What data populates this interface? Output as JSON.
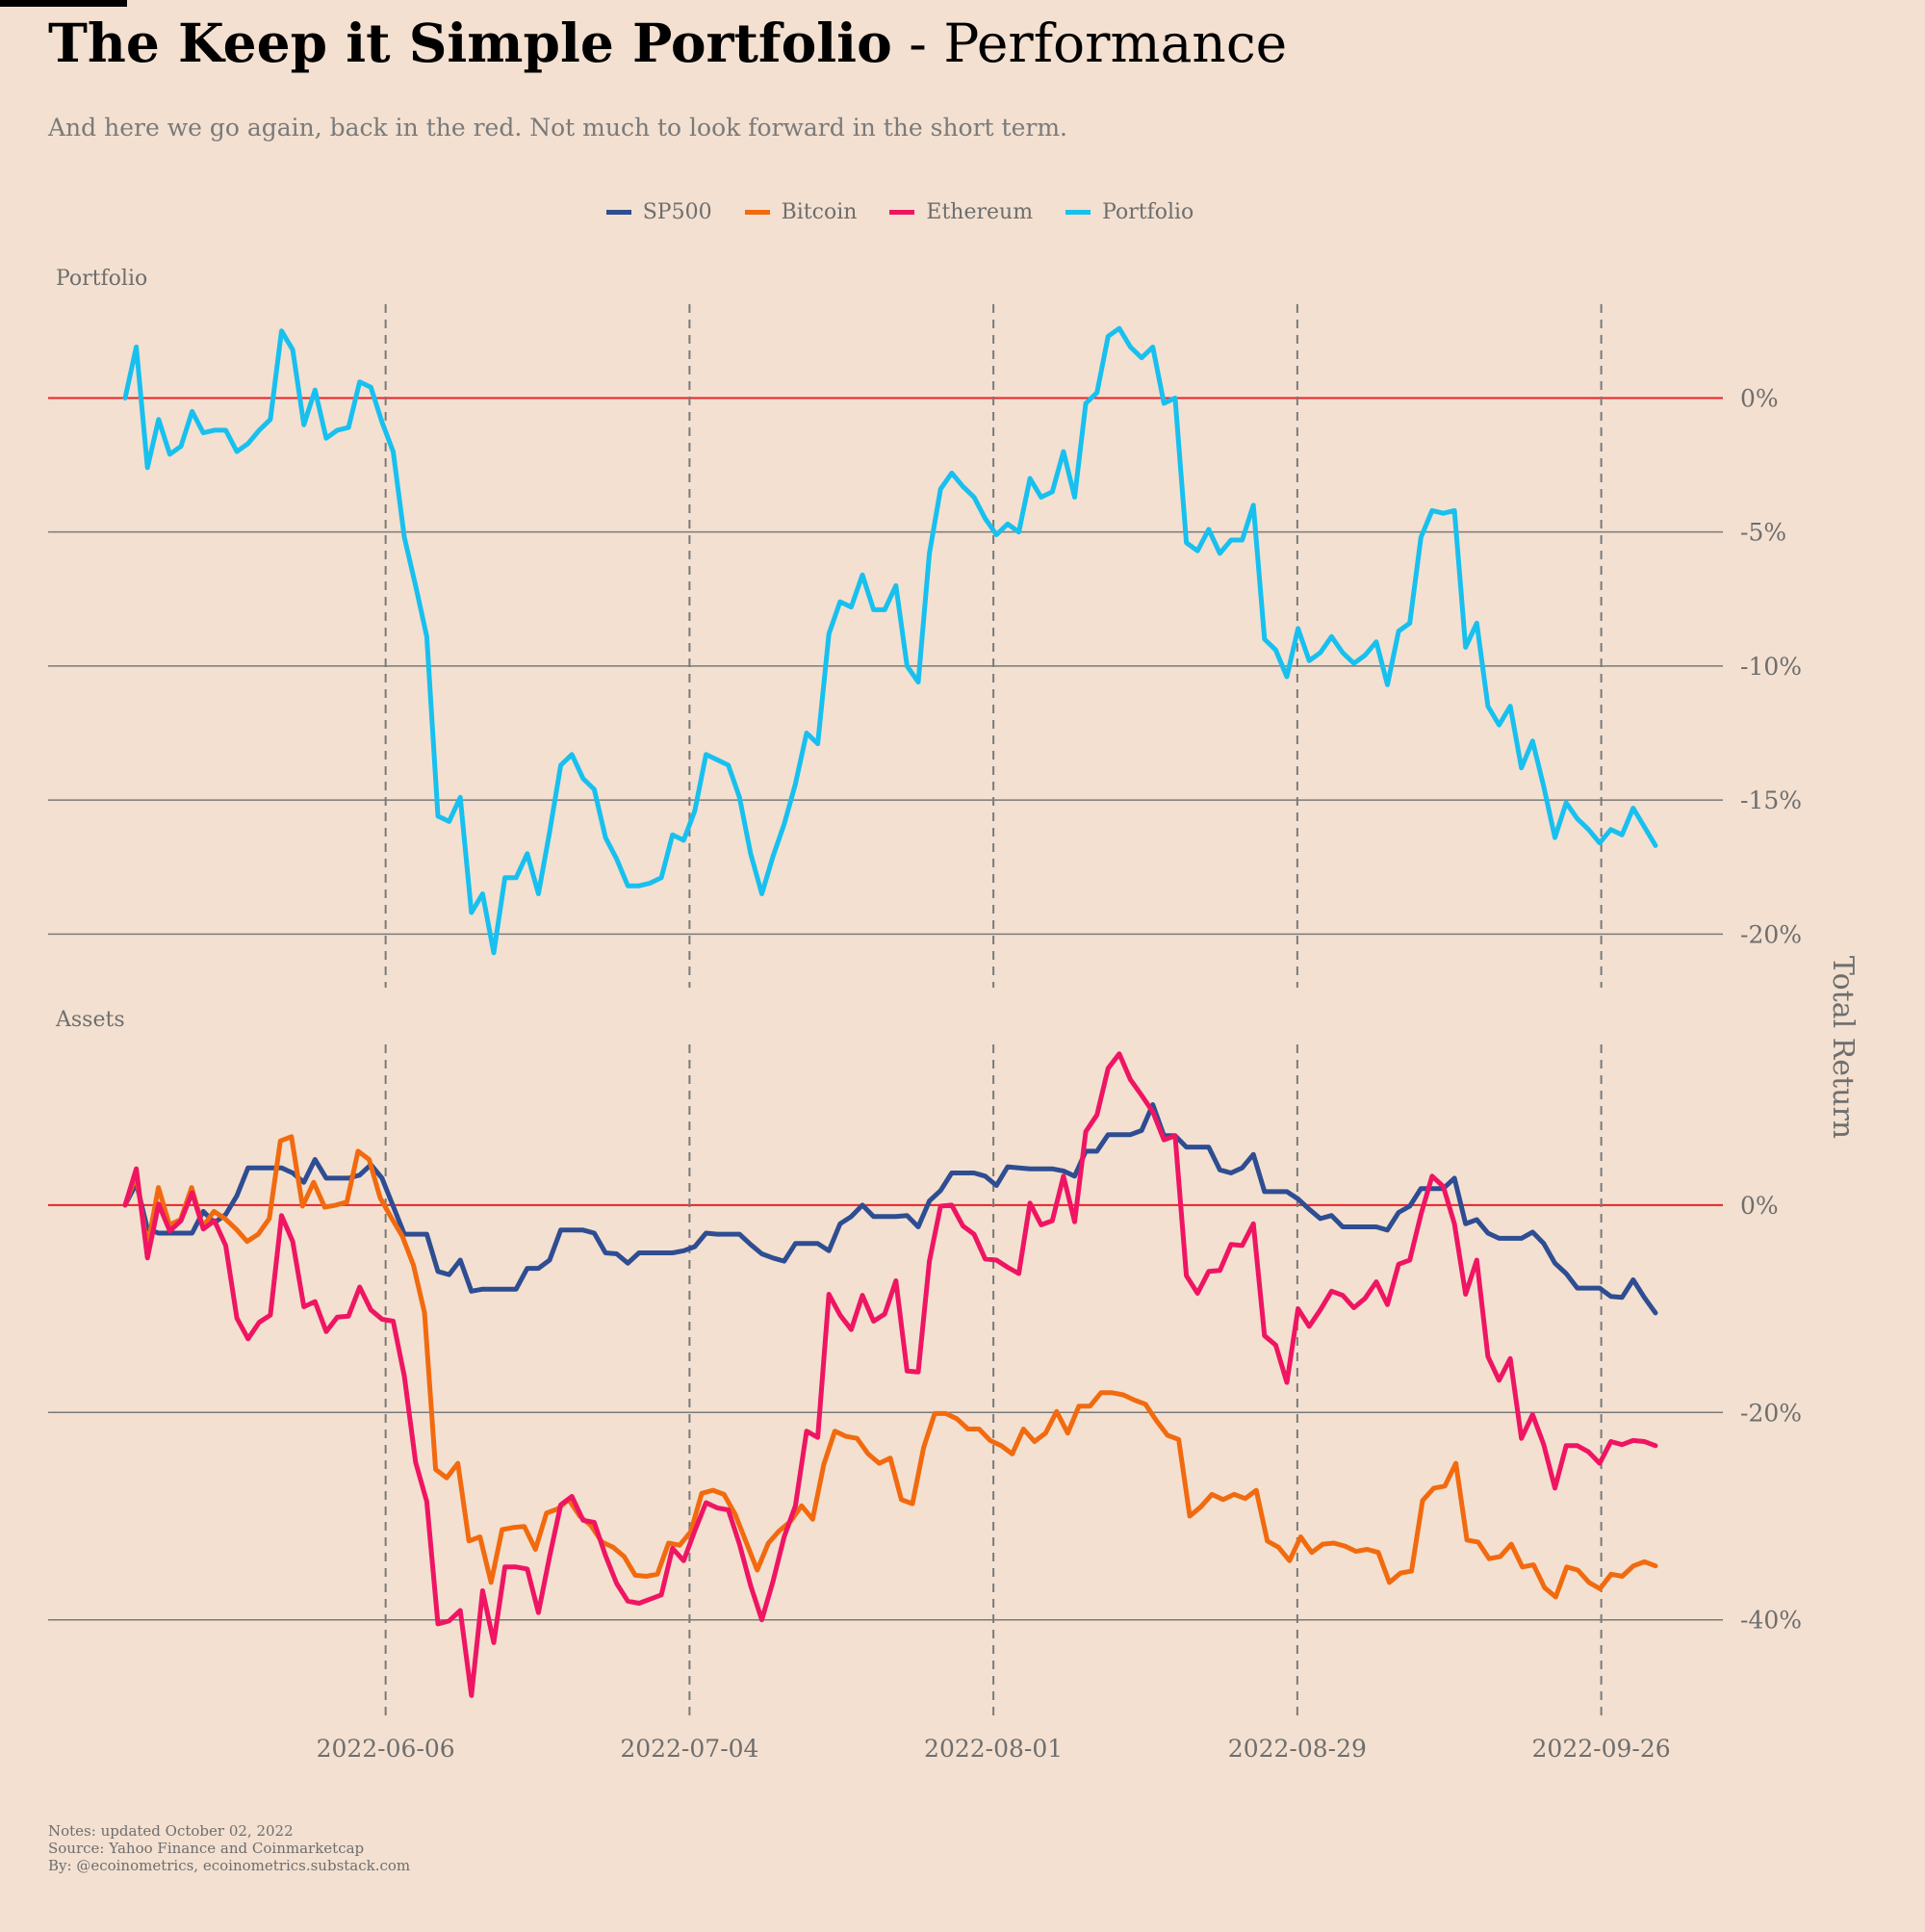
{
  "header": {
    "title_bold": "The Keep it Simple Portfolio",
    "title_rest": " - Performance",
    "subtitle": "And here we go again, back in the red. Not much to look forward in the short term."
  },
  "legend": [
    {
      "name": "SP500",
      "color": "#2e4d92"
    },
    {
      "name": "Bitcoin",
      "color": "#f26a0f"
    },
    {
      "name": "Ethereum",
      "color": "#ef1563"
    },
    {
      "name": "Portfolio",
      "color": "#18c0ef"
    }
  ],
  "notes": {
    "line1": "Notes: updated October 02, 2022",
    "line2": "Source: Yahoo Finance and Coinmarketcap",
    "line3": "By: @ecoinometrics, ecoinometrics.substack.com"
  },
  "colors": {
    "background": "#f3e0d0",
    "zero_line": "#e8232a",
    "grid": "#7a7a7a",
    "text": "#6e6e6e"
  },
  "chart_data": [
    {
      "type": "line",
      "panel_label": "Portfolio",
      "ylabel": "Total Return",
      "x_start": "2022-05-13",
      "x_end": "2022-10-01",
      "xticks": [
        "2022-06-06",
        "2022-07-04",
        "2022-08-01",
        "2022-08-29",
        "2022-09-26"
      ],
      "ylim": [
        -22,
        3.5
      ],
      "yticks": [
        0,
        -5,
        -10,
        -15,
        -20
      ],
      "ytick_labels": [
        "0%",
        "-5%",
        "-10%",
        "-15%",
        "-20%"
      ],
      "grid": "horizontal",
      "series": [
        {
          "name": "Portfolio",
          "color": "#18c0ef",
          "values": [
            0,
            1.9,
            -2.6,
            -0.8,
            -2.1,
            -1.8,
            -0.5,
            -1.3,
            -1.2,
            -1.2,
            -2.0,
            -1.7,
            -1.2,
            -0.8,
            2.5,
            1.8,
            -1.0,
            0.3,
            -1.5,
            -1.2,
            -1.1,
            0.6,
            0.4,
            -0.9,
            -2.0,
            -5.2,
            -7.0,
            -8.9,
            -15.6,
            -15.8,
            -14.9,
            -19.2,
            -18.5,
            -20.7,
            -17.9,
            -17.9,
            -17.0,
            -18.5,
            -16.2,
            -13.7,
            -13.3,
            -14.2,
            -14.6,
            -16.4,
            -17.2,
            -18.2,
            -18.2,
            -18.1,
            -17.9,
            -16.3,
            -16.5,
            -15.4,
            -13.3,
            -13.5,
            -13.7,
            -14.9,
            -17.0,
            -18.5,
            -17.1,
            -15.9,
            -14.4,
            -12.5,
            -12.9,
            -8.8,
            -7.6,
            -7.8,
            -6.6,
            -7.9,
            -7.9,
            -7.0,
            -10.0,
            -10.6,
            -5.8,
            -3.4,
            -2.8,
            -3.3,
            -3.7,
            -4.5,
            -5.1,
            -4.7,
            -5.0,
            -3.0,
            -3.7,
            -3.5,
            -2.0,
            -3.7,
            -0.2,
            0.2,
            2.3,
            2.6,
            1.9,
            1.5,
            1.9,
            -0.2,
            0.0,
            -5.4,
            -5.7,
            -4.9,
            -5.8,
            -5.3,
            -5.3,
            -4.0,
            -9.0,
            -9.4,
            -10.4,
            -8.6,
            -9.8,
            -9.5,
            -8.9,
            -9.5,
            -9.9,
            -9.6,
            -9.1,
            -10.7,
            -8.7,
            -8.4,
            -5.2,
            -4.2,
            -4.3,
            -4.2,
            -9.3,
            -8.4,
            -11.5,
            -12.2,
            -11.5,
            -13.8,
            -12.8,
            -14.5,
            -16.4,
            -15.1,
            -15.7,
            -16.1,
            -16.6,
            -16.1,
            -16.3,
            -15.3,
            -16.0,
            -16.7
          ]
        }
      ]
    },
    {
      "type": "line",
      "panel_label": "Assets",
      "ylabel": "Total Return",
      "x_start": "2022-05-13",
      "x_end": "2022-10-01",
      "xticks": [
        "2022-06-06",
        "2022-07-04",
        "2022-08-01",
        "2022-08-29",
        "2022-09-26"
      ],
      "ylim": [
        -49.5,
        15.5
      ],
      "yticks": [
        0,
        -20,
        -40
      ],
      "ytick_labels": [
        "0%",
        "-20%",
        "-40%"
      ],
      "grid": "horizontal",
      "series": [
        {
          "name": "SP500",
          "color": "#2e4d92",
          "values": [
            0,
            2.1,
            -2.3,
            -2.7,
            -2.7,
            -2.7,
            -2.7,
            -0.6,
            -1.7,
            -0.9,
            0.9,
            3.6,
            3.6,
            3.6,
            3.6,
            3.1,
            2.2,
            4.4,
            2.6,
            2.6,
            2.6,
            2.9,
            3.9,
            2.6,
            -0.1,
            -2.8,
            -2.8,
            -2.8,
            -6.4,
            -6.7,
            -5.3,
            -8.3,
            -8.1,
            -8.1,
            -8.1,
            -8.1,
            -6.1,
            -6.1,
            -5.3,
            -2.4,
            -2.4,
            -2.4,
            -2.7,
            -4.6,
            -4.7,
            -5.6,
            -4.6,
            -4.6,
            -4.6,
            -4.6,
            -4.4,
            -4.0,
            -2.7,
            -2.8,
            -2.8,
            -2.8,
            -3.8,
            -4.7,
            -5.1,
            -5.4,
            -3.7,
            -3.7,
            -3.7,
            -4.4,
            -1.8,
            -1.1,
            0.0,
            -1.1,
            -1.1,
            -1.1,
            -1.0,
            -2.1,
            0.4,
            1.4,
            3.1,
            3.1,
            3.1,
            2.8,
            1.9,
            3.7,
            3.6,
            3.5,
            3.5,
            3.5,
            3.3,
            2.8,
            5.2,
            5.2,
            6.8,
            6.8,
            6.8,
            7.2,
            9.7,
            6.7,
            6.7,
            5.6,
            5.6,
            5.6,
            3.4,
            3.1,
            3.6,
            4.9,
            1.3,
            1.3,
            1.3,
            0.6,
            -0.4,
            -1.3,
            -1.0,
            -2.1,
            -2.1,
            -2.1,
            -2.1,
            -2.4,
            -0.7,
            -0.1,
            1.6,
            1.6,
            1.6,
            2.6,
            -1.8,
            -1.4,
            -2.7,
            -3.2,
            -3.2,
            -3.2,
            -2.6,
            -3.7,
            -5.6,
            -6.6,
            -8.0,
            -8.0,
            -8.0,
            -8.8,
            -8.9,
            -7.2,
            -8.9,
            -10.4
          ]
        },
        {
          "name": "Bitcoin",
          "color": "#f26a0f",
          "values": [
            0,
            2.9,
            -4.1,
            1.7,
            -1.9,
            -1.4,
            1.7,
            -2.1,
            -0.6,
            -1.3,
            -2.3,
            -3.5,
            -2.8,
            -1.3,
            6.2,
            6.6,
            -0.1,
            2.2,
            -0.2,
            0.0,
            0.3,
            5.2,
            4.4,
            0.7,
            -1.2,
            -3.0,
            -5.8,
            -10.4,
            -25.5,
            -26.3,
            -24.9,
            -32.4,
            -32.0,
            -36.4,
            -31.3,
            -31.1,
            -31.0,
            -33.2,
            -29.7,
            -29.3,
            -28.4,
            -30.0,
            -30.9,
            -32.5,
            -33.0,
            -33.9,
            -35.7,
            -35.8,
            -35.6,
            -32.6,
            -32.8,
            -31.5,
            -27.8,
            -27.5,
            -27.9,
            -29.8,
            -32.5,
            -35.2,
            -32.6,
            -31.4,
            -30.5,
            -29.0,
            -30.3,
            -25.0,
            -21.8,
            -22.3,
            -22.5,
            -24.0,
            -24.9,
            -24.4,
            -28.4,
            -28.8,
            -23.4,
            -20.1,
            -20.1,
            -20.6,
            -21.6,
            -21.6,
            -22.7,
            -23.2,
            -24.0,
            -21.6,
            -22.8,
            -22.0,
            -19.9,
            -22.0,
            -19.4,
            -19.4,
            -18.1,
            -18.1,
            -18.3,
            -18.8,
            -19.2,
            -20.8,
            -22.2,
            -22.6,
            -30.0,
            -29.1,
            -27.9,
            -28.4,
            -27.9,
            -28.3,
            -27.5,
            -32.4,
            -33.0,
            -34.3,
            -32.0,
            -33.5,
            -32.7,
            -32.6,
            -32.9,
            -33.4,
            -33.2,
            -33.5,
            -36.4,
            -35.5,
            -35.3,
            -28.5,
            -27.3,
            -27.1,
            -24.9,
            -32.3,
            -32.5,
            -34.1,
            -33.9,
            -32.7,
            -34.9,
            -34.7,
            -36.9,
            -37.8,
            -34.9,
            -35.2,
            -36.4,
            -37.0,
            -35.6,
            -35.8,
            -34.8,
            -34.4,
            -34.8
          ]
        },
        {
          "name": "Ethereum",
          "color": "#ef1563",
          "values": [
            0,
            3.5,
            -5.1,
            0.1,
            -2.5,
            -1.5,
            1.2,
            -2.3,
            -1.5,
            -3.9,
            -10.9,
            -12.9,
            -11.3,
            -10.6,
            -1.0,
            -3.5,
            -9.8,
            -9.3,
            -12.2,
            -10.8,
            -10.7,
            -7.9,
            -10.1,
            -11.0,
            -11.2,
            -16.5,
            -24.8,
            -28.6,
            -40.4,
            -40.1,
            -39.1,
            -47.3,
            -37.2,
            -42.2,
            -34.9,
            -34.9,
            -35.1,
            -39.3,
            -33.9,
            -28.9,
            -28.1,
            -30.4,
            -30.6,
            -33.8,
            -36.5,
            -38.2,
            -38.4,
            -38.0,
            -37.6,
            -33.1,
            -34.3,
            -31.4,
            -28.7,
            -29.2,
            -29.4,
            -32.7,
            -36.7,
            -40.0,
            -36.3,
            -32.0,
            -29.0,
            -21.8,
            -22.4,
            -8.6,
            -10.6,
            -12.0,
            -8.7,
            -11.2,
            -10.5,
            -7.3,
            -16.0,
            -16.1,
            -5.4,
            -0.1,
            0.0,
            -2.0,
            -2.8,
            -5.2,
            -5.3,
            -6.0,
            -6.6,
            0.2,
            -1.9,
            -1.5,
            2.8,
            -1.6,
            7.1,
            8.7,
            13.2,
            14.6,
            12.1,
            10.6,
            9.0,
            6.3,
            6.7,
            -6.8,
            -8.5,
            -6.4,
            -6.3,
            -3.8,
            -3.9,
            -1.8,
            -12.6,
            -13.5,
            -17.1,
            -10.0,
            -11.7,
            -10.1,
            -8.3,
            -8.7,
            -9.9,
            -9.0,
            -7.4,
            -9.6,
            -5.7,
            -5.3,
            -0.9,
            2.8,
            1.8,
            -1.8,
            -8.6,
            -5.3,
            -14.6,
            -16.9,
            -14.8,
            -22.5,
            -20.2,
            -23.1,
            -27.3,
            -23.2,
            -23.2,
            -23.8,
            -24.9,
            -22.8,
            -23.1,
            -22.7,
            -22.8,
            -23.2
          ]
        }
      ]
    }
  ]
}
